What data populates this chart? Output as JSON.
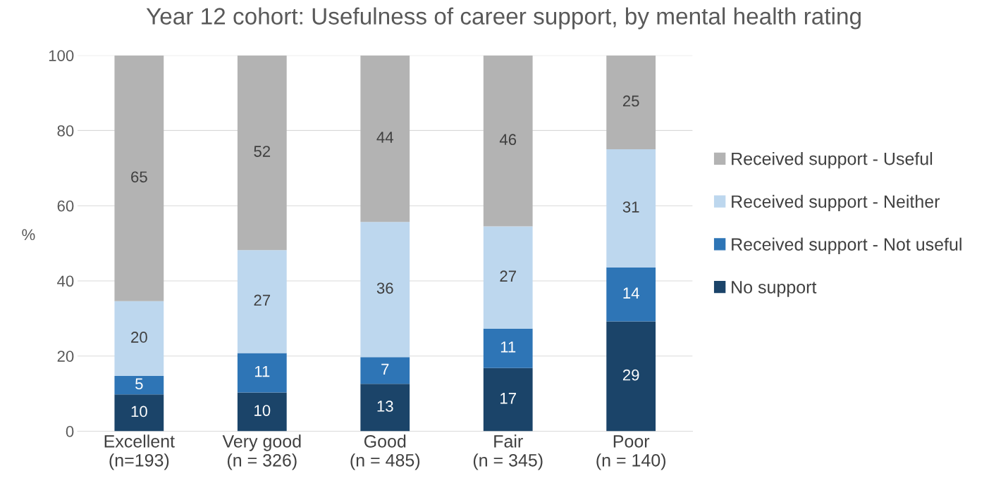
{
  "chart_data": {
    "type": "bar",
    "title": "Year 12 cohort: Usefulness of career support, by mental health rating",
    "ylabel": "%",
    "categories": [
      "Excellent\n(n=193)",
      "Very good\n(n = 326)",
      "Good\n(n = 485)",
      "Fair\n(n = 345)",
      "Poor\n(n = 140)"
    ],
    "stacked": true,
    "series": [
      {
        "name": "No support",
        "color": "#1b4469",
        "values": [
          9.8,
          10.3,
          12.6,
          16.8,
          29.2
        ],
        "value_labels": [
          "10",
          "10",
          "13",
          "17",
          "29"
        ]
      },
      {
        "name": "Received support - Not useful",
        "color": "#2e75b6",
        "values": [
          4.9,
          10.5,
          7.1,
          10.5,
          14.4
        ],
        "value_labels": [
          "5",
          "11",
          "7",
          "11",
          "14"
        ]
      },
      {
        "name": "Received support - Neither",
        "color": "#bdd7ee",
        "values": [
          19.9,
          27.4,
          36.0,
          27.2,
          31.4
        ],
        "value_labels": [
          "20",
          "27",
          "36",
          "27",
          "31"
        ]
      },
      {
        "name": "Received support - Useful",
        "color": "#b3b3b3",
        "values": [
          65.4,
          51.8,
          44.3,
          45.5,
          25.0
        ],
        "value_labels": [
          "65",
          "52",
          "44",
          "46",
          "25"
        ]
      }
    ],
    "ylim": [
      0,
      100
    ],
    "yticks": [
      0,
      20,
      40,
      60,
      80,
      100
    ],
    "grid": "y",
    "legend": "right"
  }
}
